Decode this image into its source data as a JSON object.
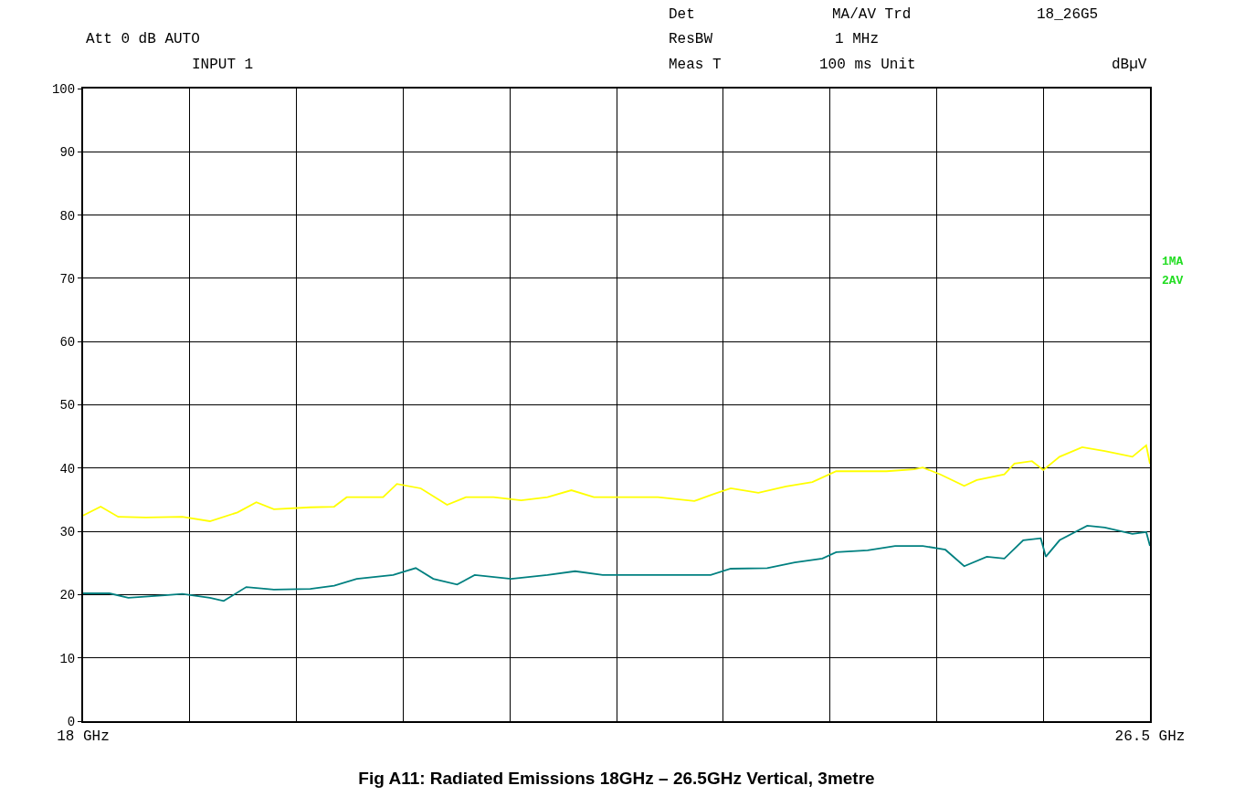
{
  "chart_data": {
    "type": "line",
    "title": "Fig A11: Radiated Emissions 18GHz – 26.5GHz Vertical, 3metre",
    "annotations": [
      "Att 0 dB AUTO",
      "INPUT 1",
      "Det",
      "MA/AV Trd",
      "18_26G5",
      "ResBW",
      "1 MHz",
      "Meas T",
      "100 ms Unit",
      "dBµV",
      "1MA",
      "2AV"
    ],
    "xlim": [
      18,
      26.5
    ],
    "xticks": [
      {
        "value": 18,
        "label": "18 GHz"
      },
      {
        "value": 18.85,
        "label": null
      },
      {
        "value": 19.7,
        "label": null
      },
      {
        "value": 20.55,
        "label": null
      },
      {
        "value": 21.4,
        "label": null
      },
      {
        "value": 22.25,
        "label": null
      },
      {
        "value": 23.1,
        "label": null
      },
      {
        "value": 23.95,
        "label": null
      },
      {
        "value": 24.8,
        "label": null
      },
      {
        "value": 25.65,
        "label": null
      },
      {
        "value": 26.5,
        "label": "26.5 GHz"
      }
    ],
    "ylim": [
      0,
      100
    ],
    "yticks": [
      0,
      10,
      20,
      30,
      40,
      50,
      60,
      70,
      80,
      90,
      100
    ],
    "grid": true,
    "marker": "none",
    "line_style": "solid",
    "series": [
      {
        "color": "#ffff00",
        "x": [
          18.0,
          18.14,
          18.28,
          18.5,
          18.79,
          19.01,
          19.23,
          19.38,
          19.52,
          19.81,
          20.0,
          20.1,
          20.39,
          20.5,
          20.69,
          20.9,
          21.05,
          21.27,
          21.49,
          21.7,
          21.89,
          22.07,
          22.29,
          22.58,
          22.87,
          23.01,
          23.16,
          23.38,
          23.6,
          23.81,
          24.0,
          24.18,
          24.4,
          24.62,
          24.69,
          24.83,
          25.02,
          25.12,
          25.34,
          25.42,
          25.56,
          25.65,
          25.78,
          25.96,
          26.14,
          26.36,
          26.47,
          26.5
        ],
        "values": [
          32.5,
          33.9,
          32.3,
          32.2,
          32.3,
          31.6,
          33.0,
          34.6,
          33.5,
          33.8,
          33.9,
          35.4,
          35.4,
          37.5,
          36.8,
          34.2,
          35.4,
          35.4,
          34.9,
          35.4,
          36.5,
          35.4,
          35.4,
          35.4,
          34.8,
          35.8,
          36.8,
          36.1,
          37.1,
          37.8,
          39.5,
          39.5,
          39.5,
          39.8,
          40.1,
          39.0,
          37.2,
          38.1,
          39.0,
          40.7,
          41.1,
          39.7,
          41.8,
          43.3,
          42.7,
          41.8,
          43.6,
          40.7
        ]
      },
      {
        "color": "#008080",
        "x": [
          18.0,
          18.21,
          18.36,
          18.65,
          18.79,
          19.01,
          19.12,
          19.3,
          19.52,
          19.81,
          20.0,
          20.18,
          20.47,
          20.65,
          20.79,
          20.98,
          21.12,
          21.41,
          21.7,
          21.92,
          22.14,
          22.43,
          22.72,
          23.0,
          23.16,
          23.45,
          23.67,
          23.89,
          24.0,
          24.25,
          24.47,
          24.69,
          24.87,
          25.02,
          25.2,
          25.34,
          25.49,
          25.63,
          25.67,
          25.78,
          26.0,
          26.14,
          26.36,
          26.47,
          26.5
        ],
        "values": [
          20.2,
          20.2,
          19.5,
          19.9,
          20.1,
          19.5,
          19.0,
          21.2,
          20.8,
          20.9,
          21.4,
          22.5,
          23.1,
          24.2,
          22.5,
          21.6,
          23.1,
          22.5,
          23.1,
          23.7,
          23.1,
          23.1,
          23.1,
          23.1,
          24.1,
          24.2,
          25.1,
          25.7,
          26.7,
          27.0,
          27.7,
          27.7,
          27.1,
          24.5,
          26.0,
          25.7,
          28.6,
          28.9,
          26.0,
          28.6,
          30.9,
          30.6,
          29.6,
          29.9,
          27.7
        ]
      }
    ]
  }
}
